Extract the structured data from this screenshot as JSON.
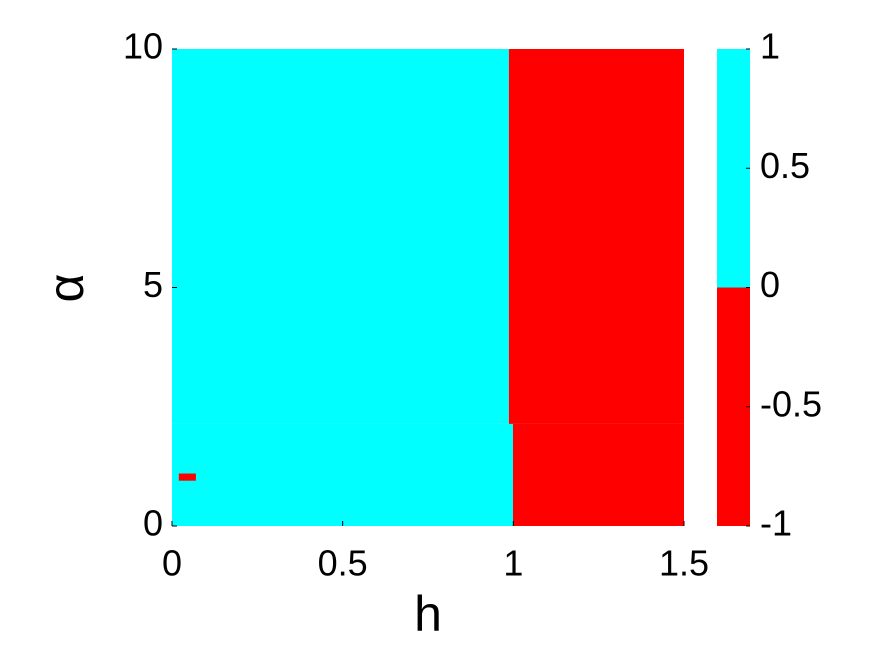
{
  "chart_data": {
    "type": "heatmap",
    "xlabel": "h",
    "ylabel": "α",
    "xlim": [
      0,
      1.5
    ],
    "xticks": [
      0,
      0.5,
      1,
      1.5
    ],
    "ylim": [
      0,
      10
    ],
    "yticks": [
      0,
      5,
      10
    ],
    "clim": [
      -1,
      1
    ],
    "cticks": [
      -1,
      -0.5,
      0,
      0.5,
      1
    ],
    "colormap": [
      {
        "range": [
          -1,
          0
        ],
        "color": "#ff0000"
      },
      {
        "range": [
          0,
          1
        ],
        "color": "#00ffff"
      }
    ],
    "regions": [
      {
        "xrange": [
          0,
          0.987
        ],
        "yrange": [
          2.14,
          10
        ],
        "value": 1
      },
      {
        "xrange": [
          0,
          0.999
        ],
        "yrange": [
          0,
          2.14
        ],
        "value": 1
      },
      {
        "xrange": [
          0.987,
          1.5
        ],
        "yrange": [
          2.14,
          10
        ],
        "value": -1
      },
      {
        "xrange": [
          0.999,
          1.5
        ],
        "yrange": [
          0,
          2.14
        ],
        "value": -1
      },
      {
        "xrange": [
          0.02,
          0.07
        ],
        "yrange": [
          0.95,
          1.1
        ],
        "value": -1
      }
    ]
  }
}
